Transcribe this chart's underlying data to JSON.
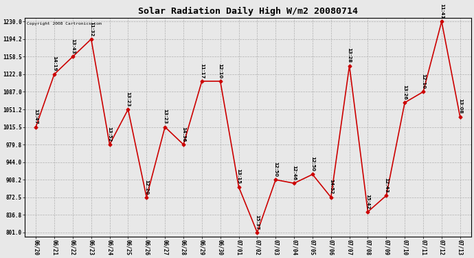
{
  "title": "Solar Radiation Daily High W/m2 20080714",
  "copyright": "Copyright 2008 Cartronics.com",
  "background_color": "#e8e8e8",
  "line_color": "#cc0000",
  "marker_color": "#cc0000",
  "grid_color": "#b0b0b0",
  "dates": [
    "06/20",
    "06/21",
    "06/22",
    "06/23",
    "06/24",
    "06/25",
    "06/26",
    "06/27",
    "06/28",
    "06/29",
    "06/30",
    "07/01",
    "07/02",
    "07/03",
    "07/04",
    "07/05",
    "07/06",
    "07/07",
    "07/08",
    "07/09",
    "07/10",
    "07/11",
    "07/12",
    "07/13"
  ],
  "values": [
    1015.5,
    1122.8,
    1158.5,
    1194.2,
    979.8,
    1051.2,
    872.5,
    1015.5,
    979.8,
    1108.5,
    1108.5,
    893.5,
    801.0,
    908.2,
    901.0,
    919.0,
    872.5,
    1140.0,
    843.0,
    876.0,
    1065.0,
    1087.0,
    1230.0,
    1036.0
  ],
  "annotations": [
    "13:47",
    "14:19",
    "13:43",
    "11:32",
    "13:52",
    "13:23",
    "12:20",
    "13:23",
    "14:36",
    "11:17",
    "12:10",
    "13:15",
    "15:37",
    "12:50",
    "12:46",
    "12:50",
    "14:52",
    "13:28",
    "15:42",
    "12:43",
    "13:26",
    "12:10",
    "11:41",
    "13:08"
  ],
  "ylim_min": 801.0,
  "ylim_max": 1230.0,
  "yticks": [
    801.0,
    836.8,
    872.5,
    908.2,
    944.0,
    979.8,
    1015.5,
    1051.2,
    1087.0,
    1122.8,
    1158.5,
    1194.2,
    1230.0
  ],
  "fig_width": 6.9,
  "fig_height": 3.75,
  "dpi": 100
}
